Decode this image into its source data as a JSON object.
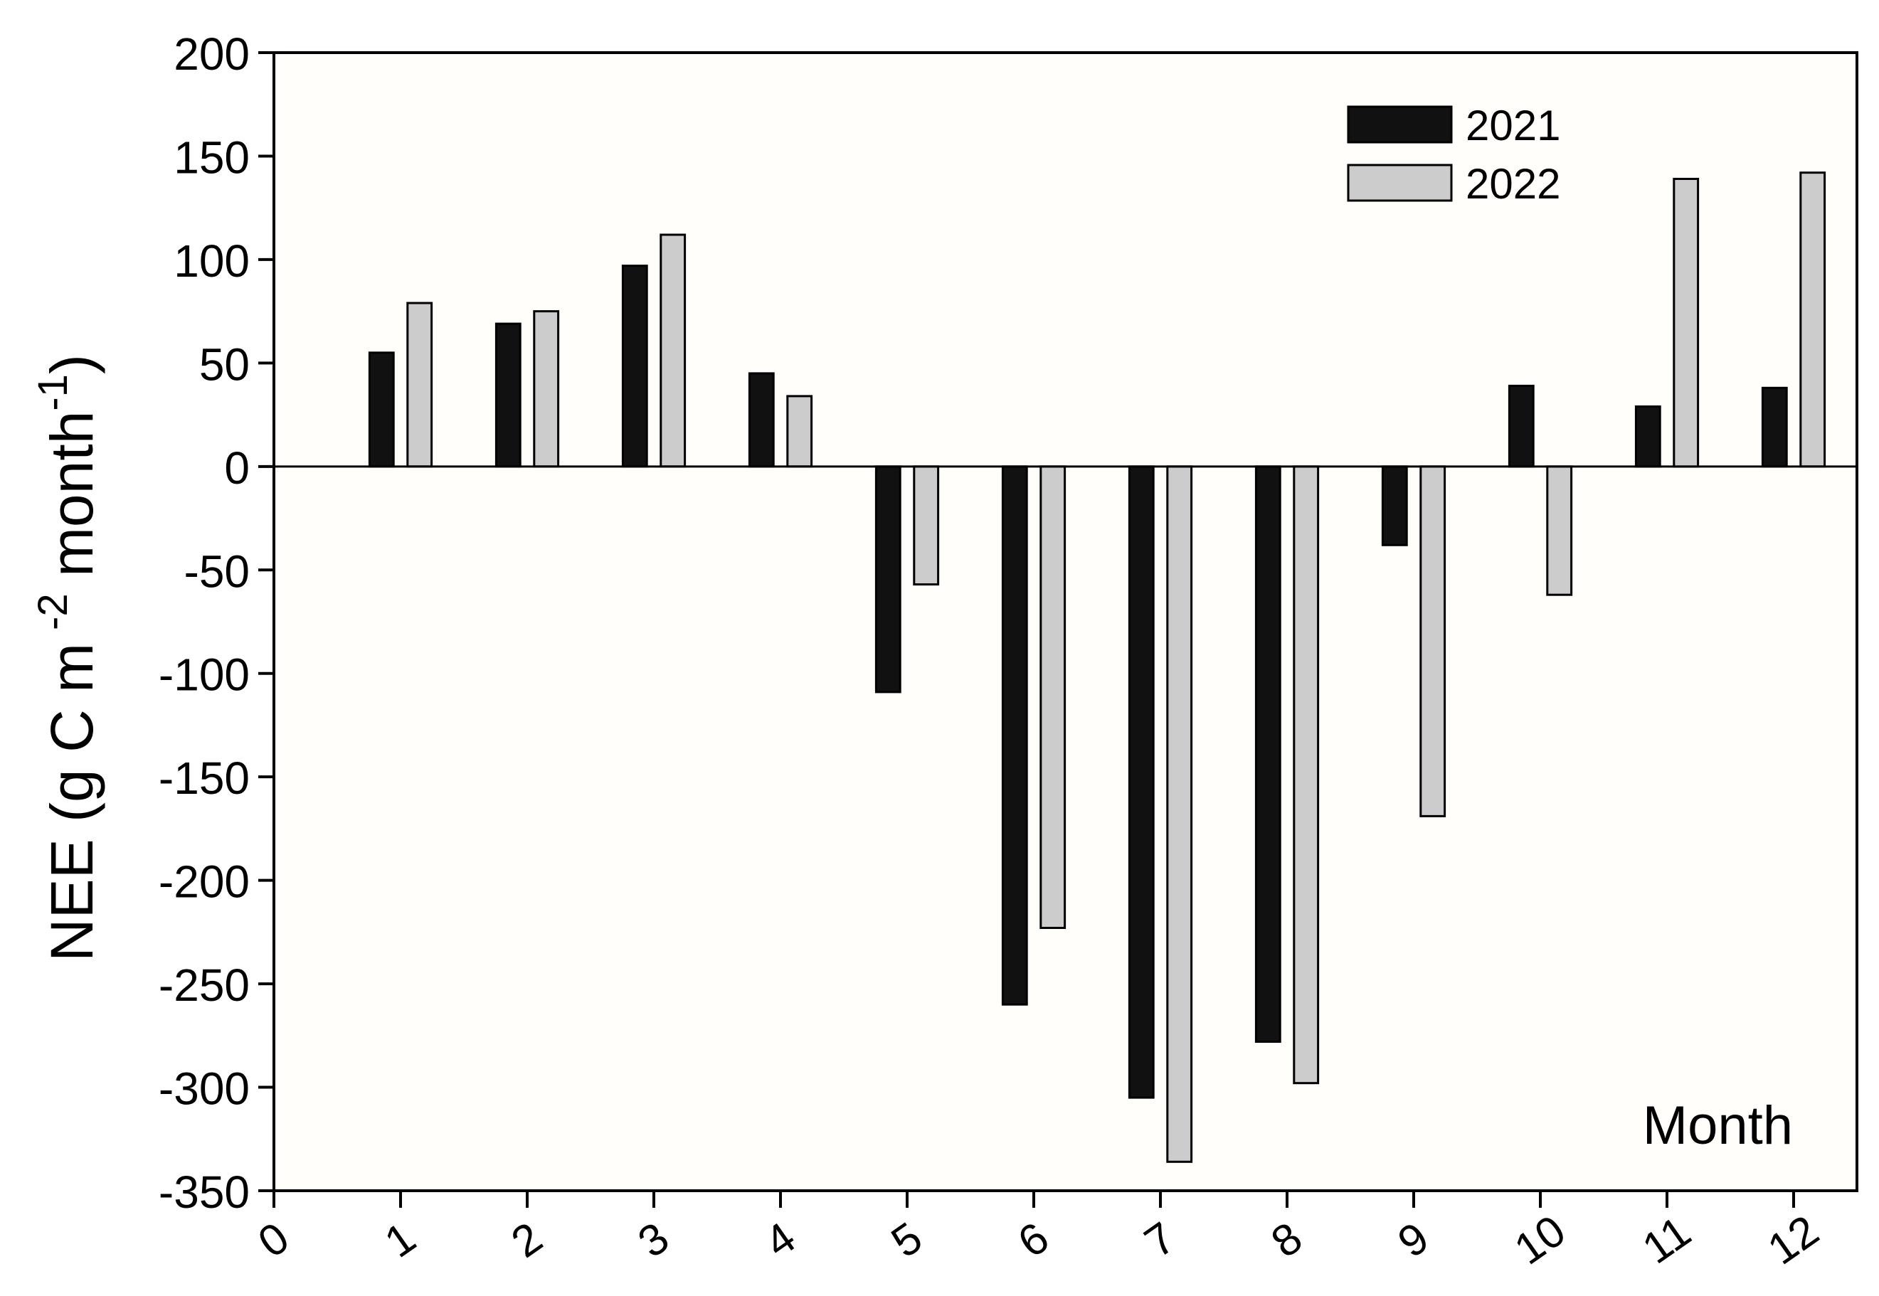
{
  "chart_data": {
    "type": "bar",
    "x": [
      1,
      2,
      3,
      4,
      5,
      6,
      7,
      8,
      9,
      10,
      11,
      12
    ],
    "xlabel": "Month",
    "ylabel": "NEE (g C m",
    "ylabel_sup1": "-2",
    "ylabel_mid": " month",
    "ylabel_sup2": "-1",
    "ylabel_end": ")",
    "xlim": [
      0,
      12.5
    ],
    "ylim": [
      -350,
      200
    ],
    "xticks": [
      0,
      1,
      2,
      3,
      4,
      5,
      6,
      7,
      8,
      9,
      10,
      11,
      12
    ],
    "yticks": [
      -350,
      -300,
      -250,
      -200,
      -150,
      -100,
      -50,
      0,
      50,
      100,
      150,
      200
    ],
    "grid": false,
    "legend_position": "top-right",
    "series": [
      {
        "name": "2021",
        "color": "#111111",
        "values": [
          55,
          69,
          97,
          45,
          -109,
          -260,
          -305,
          -278,
          -38,
          39,
          29,
          38
        ]
      },
      {
        "name": "2022",
        "color": "#cccccc",
        "values": [
          79,
          75,
          112,
          34,
          -57,
          -223,
          -336,
          -298,
          -169,
          -62,
          139,
          142
        ]
      }
    ]
  }
}
